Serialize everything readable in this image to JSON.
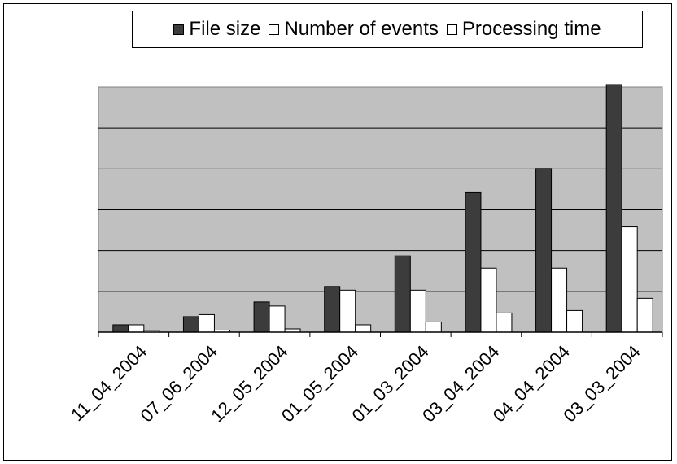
{
  "chart_data": {
    "type": "bar",
    "title": "",
    "xlabel": "",
    "ylabel": "",
    "grid": true,
    "legend": "top",
    "ylim": [
      0,
      6
    ],
    "categories": [
      "11_04_2004",
      "07_06_2004",
      "12_05_2004",
      "01_05_2004",
      "01_03_2004",
      "03_04_2004",
      "04_04_2004",
      "03_03_2004"
    ],
    "series": [
      {
        "name": "File size",
        "color": "#3c3c3c",
        "values": [
          0.18,
          0.38,
          0.74,
          1.12,
          1.87,
          3.42,
          4.01,
          6.06
        ]
      },
      {
        "name": "Number of events",
        "color": "#ffffff",
        "values": [
          0.18,
          0.43,
          0.64,
          1.03,
          1.03,
          1.57,
          1.57,
          2.58
        ]
      },
      {
        "name": "Processing time",
        "color": "#ffffff",
        "values": [
          0.04,
          0.05,
          0.08,
          0.18,
          0.25,
          0.47,
          0.53,
          0.83
        ]
      }
    ]
  }
}
